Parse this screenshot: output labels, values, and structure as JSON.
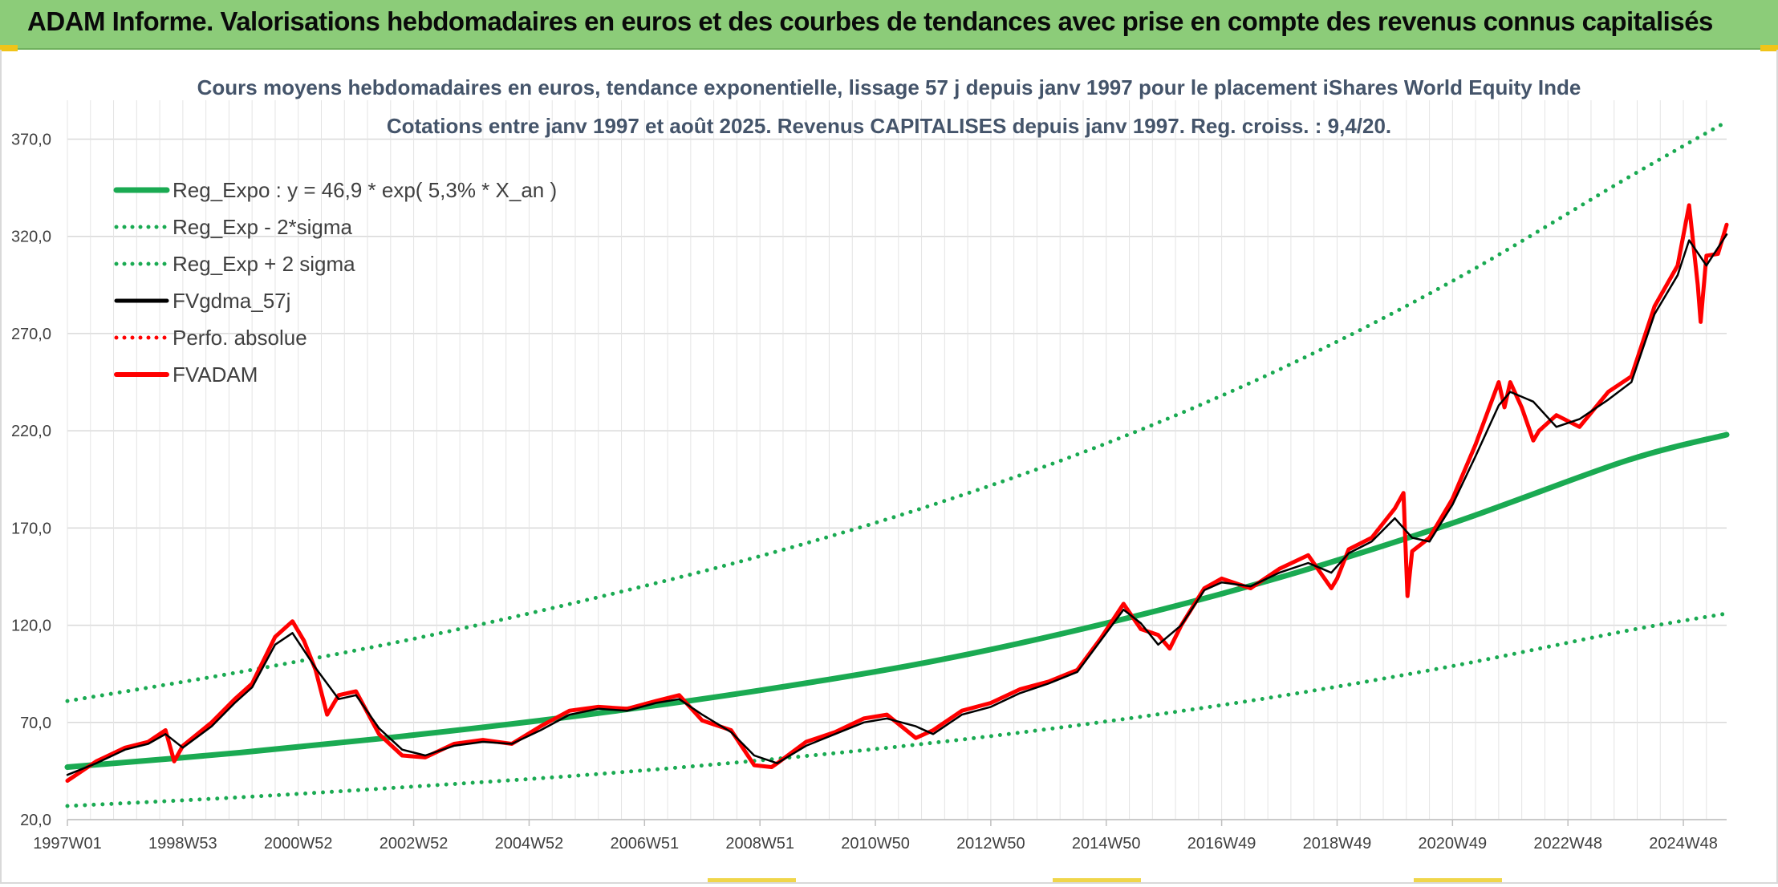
{
  "page": {
    "title": "ADAM Informe. Valorisations hebdomadaires en euros et des courbes de tendances avec prise en compte des revenus connus capitalisés"
  },
  "colors": {
    "title_bar": "#8ccc79",
    "reg_expo": "#1aaa52",
    "sigma": "#1aaa52",
    "fvgdma": "#000000",
    "perfo": "#ff0000",
    "fvadam": "#ff0000",
    "grid": "#d9d9d9"
  },
  "chart_data": {
    "type": "line",
    "title": "Cours moyens hebdomadaires en euros, tendance exponentielle, lissage 57 j depuis janv 1997 pour le placement iShares World Equity Inde",
    "subtitle": "Cotations entre janv 1997 et août 2025. Revenus CAPITALISES depuis janv 1997. Reg. croiss. : 9,4/20.",
    "xlabel": "",
    "ylabel": "",
    "ylim": [
      20,
      390
    ],
    "yticks": [
      "20,0",
      "70,0",
      "120,0",
      "170,0",
      "220,0",
      "270,0",
      "320,0",
      "370,0"
    ],
    "x_range": [
      1997.0,
      2025.75
    ],
    "xticks": [
      {
        "label": "1997W01",
        "x": 1997.0
      },
      {
        "label": "1998W53",
        "x": 1999.0
      },
      {
        "label": "2000W52",
        "x": 2001.0
      },
      {
        "label": "2002W52",
        "x": 2003.0
      },
      {
        "label": "2004W52",
        "x": 2005.0
      },
      {
        "label": "2006W51",
        "x": 2007.0
      },
      {
        "label": "2008W51",
        "x": 2009.0
      },
      {
        "label": "2010W50",
        "x": 2011.0
      },
      {
        "label": "2012W50",
        "x": 2013.0
      },
      {
        "label": "2014W50",
        "x": 2015.0
      },
      {
        "label": "2016W49",
        "x": 2017.0
      },
      {
        "label": "2018W49",
        "x": 2019.0
      },
      {
        "label": "2020W49",
        "x": 2021.0
      },
      {
        "label": "2022W48",
        "x": 2023.0
      },
      {
        "label": "2024W48",
        "x": 2025.0
      }
    ],
    "grid": true,
    "legend_position": "top-left",
    "series": [
      {
        "name": "Reg_Expo : y = 46,9 * exp( 5,3% *  X_an )",
        "style": "solid-thick",
        "color": "#1aaa52",
        "x": [
          1997.0,
          2000.0,
          2003.0,
          2006.0,
          2009.0,
          2012.0,
          2015.0,
          2018.0,
          2021.0,
          2024.0,
          2025.75
        ],
        "y": [
          47.0,
          54.5,
          63.5,
          74.0,
          86.5,
          101.5,
          121.0,
          144.5,
          172.5,
          204.5,
          218.0
        ]
      },
      {
        "name": "Reg_Exp - 2*sigma",
        "style": "dotted",
        "color": "#1aaa52",
        "x": [
          1997.0,
          2000.0,
          2003.0,
          2006.0,
          2009.0,
          2012.0,
          2015.0,
          2018.0,
          2021.0,
          2024.0,
          2025.75
        ],
        "y": [
          27.0,
          31.5,
          37.0,
          43.0,
          50.5,
          59.5,
          70.5,
          83.5,
          99.0,
          117.0,
          126.0
        ]
      },
      {
        "name": "Reg_Exp + 2 sigma",
        "style": "dotted",
        "color": "#1aaa52",
        "x": [
          1997.0,
          2000.0,
          2003.0,
          2006.0,
          2009.0,
          2012.0,
          2015.0,
          2018.0,
          2021.0,
          2024.0,
          2025.75
        ],
        "y": [
          81.0,
          96.0,
          113.0,
          133.0,
          155.5,
          182.0,
          213.5,
          251.5,
          297.0,
          349.5,
          379.0
        ]
      },
      {
        "name": "FVgdma_57j",
        "style": "solid",
        "color": "#000000",
        "x": [
          1997.0,
          1997.5,
          1998.0,
          1998.4,
          1998.7,
          1999.0,
          1999.5,
          1999.9,
          2000.2,
          2000.6,
          2000.9,
          2001.3,
          2001.7,
          2002.0,
          2002.4,
          2002.8,
          2003.2,
          2003.7,
          2004.2,
          2004.7,
          2005.2,
          2005.7,
          2006.2,
          2006.7,
          2007.2,
          2007.6,
          2008.0,
          2008.5,
          2008.9,
          2009.3,
          2009.8,
          2010.3,
          2010.8,
          2011.2,
          2011.7,
          2012.0,
          2012.5,
          2013.0,
          2013.5,
          2014.0,
          2014.5,
          2014.9,
          2015.3,
          2015.6,
          2015.9,
          2016.3,
          2016.7,
          2017.0,
          2017.5,
          2018.0,
          2018.5,
          2018.9,
          2019.2,
          2019.6,
          2020.0,
          2020.3,
          2020.6,
          2021.0,
          2021.4,
          2021.8,
          2022.0,
          2022.4,
          2022.8,
          2023.2,
          2023.7,
          2024.1,
          2024.5,
          2024.9,
          2025.1,
          2025.4,
          2025.75
        ],
        "y": [
          43.0,
          49.0,
          56.0,
          59.0,
          64.0,
          57.0,
          68.0,
          80.0,
          88.0,
          110.0,
          116.0,
          98.0,
          82.0,
          84.0,
          67.0,
          56.0,
          53.0,
          58.0,
          60.0,
          59.0,
          66.0,
          74.0,
          77.0,
          76.0,
          80.0,
          82.0,
          74.0,
          65.0,
          53.0,
          49.0,
          58.0,
          64.0,
          70.0,
          72.0,
          68.0,
          64.0,
          74.0,
          78.0,
          85.0,
          90.0,
          96.0,
          112.0,
          128.0,
          121.0,
          110.0,
          120.0,
          138.0,
          142.0,
          140.0,
          147.0,
          152.0,
          147.0,
          157.0,
          163.0,
          175.0,
          165.0,
          163.0,
          182.0,
          207.0,
          233.0,
          240.0,
          235.0,
          222.0,
          226.0,
          236.0,
          245.0,
          280.0,
          300.0,
          318.0,
          305.0,
          321.0
        ]
      },
      {
        "name": "Perfo. absolue",
        "style": "dotted",
        "color": "#ff0000",
        "x": [],
        "y": []
      },
      {
        "name": "FVADAM",
        "style": "solid-thick",
        "color": "#ff0000",
        "x": [
          1997.0,
          1997.5,
          1998.0,
          1998.4,
          1998.7,
          1998.85,
          1999.0,
          1999.5,
          1999.9,
          2000.2,
          2000.6,
          2000.9,
          2001.1,
          2001.3,
          2001.5,
          2001.7,
          2002.0,
          2002.4,
          2002.8,
          2003.2,
          2003.7,
          2004.2,
          2004.7,
          2005.2,
          2005.7,
          2006.2,
          2006.7,
          2007.2,
          2007.6,
          2008.0,
          2008.5,
          2008.9,
          2009.2,
          2009.3,
          2009.8,
          2010.3,
          2010.8,
          2011.2,
          2011.7,
          2012.0,
          2012.5,
          2013.0,
          2013.5,
          2014.0,
          2014.5,
          2014.9,
          2015.3,
          2015.6,
          2015.9,
          2016.1,
          2016.3,
          2016.7,
          2017.0,
          2017.5,
          2018.0,
          2018.5,
          2018.9,
          2019.0,
          2019.2,
          2019.6,
          2020.0,
          2020.15,
          2020.22,
          2020.3,
          2020.6,
          2021.0,
          2021.4,
          2021.8,
          2021.9,
          2022.0,
          2022.2,
          2022.4,
          2022.5,
          2022.8,
          2023.2,
          2023.7,
          2024.1,
          2024.5,
          2024.9,
          2025.1,
          2025.25,
          2025.3,
          2025.4,
          2025.6,
          2025.75
        ],
        "y": [
          40.0,
          50.0,
          57.0,
          60.0,
          66.0,
          50.0,
          58.0,
          70.0,
          82.0,
          90.0,
          114.0,
          122.0,
          112.0,
          97.0,
          74.0,
          84.0,
          86.0,
          64.0,
          53.0,
          52.0,
          59.0,
          61.0,
          59.0,
          68.0,
          76.0,
          78.0,
          77.0,
          81.0,
          84.0,
          71.0,
          66.0,
          48.0,
          47.0,
          49.0,
          60.0,
          65.0,
          72.0,
          74.0,
          62.0,
          66.0,
          76.0,
          80.0,
          87.0,
          91.0,
          97.0,
          113.0,
          131.0,
          118.0,
          115.0,
          108.0,
          120.0,
          139.0,
          144.0,
          139.0,
          149.0,
          156.0,
          139.0,
          144.0,
          159.0,
          165.0,
          180.0,
          188.0,
          135.0,
          158.0,
          165.0,
          185.0,
          213.0,
          245.0,
          232.0,
          245.0,
          232.0,
          215.0,
          220.0,
          228.0,
          222.0,
          240.0,
          248.0,
          284.0,
          305.0,
          336.0,
          295.0,
          276.0,
          310.0,
          311.0,
          326.0
        ]
      }
    ]
  }
}
